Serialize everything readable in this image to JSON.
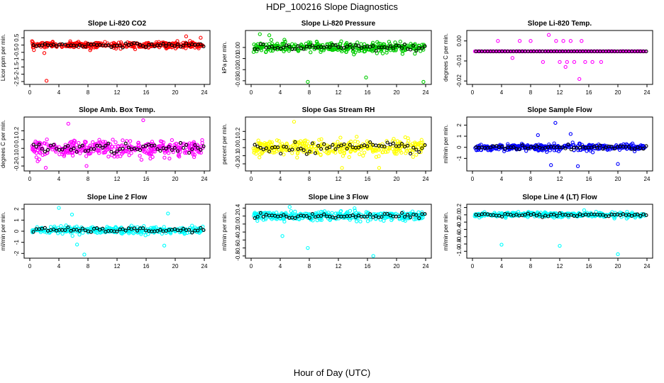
{
  "title": "HDP_100216  Slope Diagnostics",
  "xlabel": "Hour of Day (UTC)",
  "chart_data": [
    {
      "type": "scatter",
      "title": "Slope Li-820 CO2",
      "ylabel": "Licor ppm per min.",
      "color": "#ff0000",
      "xlim": [
        0,
        24
      ],
      "ylim": [
        -2.6,
        0.9
      ],
      "x_ticks": [
        0,
        4,
        8,
        12,
        16,
        20,
        24
      ],
      "y_ticks": [
        -2.5,
        -2,
        -1.5,
        -1,
        -0.5,
        0,
        0.5
      ],
      "y_tick_labels": [
        "-2.5",
        "-2",
        "-1.5",
        "-1",
        "-0.5",
        "0",
        "0.5"
      ],
      "spread": 0.18,
      "center": 0.0,
      "outliers": [
        [
          2.3,
          -2.45
        ],
        [
          2.0,
          -0.55
        ],
        [
          21.5,
          0.6
        ],
        [
          23.5,
          0.5
        ],
        [
          8.3,
          -0.35
        ]
      ]
    },
    {
      "type": "scatter",
      "title": "Slope Li-820 Pressure",
      "ylabel": "kPa per min.",
      "color": "#00cc00",
      "xlim": [
        0,
        24
      ],
      "ylim": [
        -0.032,
        0.014
      ],
      "x_ticks": [
        0,
        4,
        8,
        12,
        16,
        20,
        24
      ],
      "y_ticks": [
        -0.03,
        -0.02,
        -0.01,
        0.0
      ],
      "y_tick_labels": [
        "-0.03",
        "-0.02",
        "-0.01",
        "0.00"
      ],
      "spread": 0.004,
      "center": 0.0,
      "outliers": [
        [
          7.8,
          -0.031
        ],
        [
          15.8,
          -0.027
        ],
        [
          23.7,
          -0.031
        ],
        [
          1.2,
          0.012
        ],
        [
          2.5,
          0.011
        ]
      ]
    },
    {
      "type": "scatter",
      "title": "Slope Li-820 Temp.",
      "ylabel": "degrees C per min.",
      "color": "#ff00ff",
      "xlim": [
        0,
        24
      ],
      "ylim": [
        -0.021,
        0.0045
      ],
      "x_ticks": [
        0,
        4,
        8,
        12,
        16,
        20,
        24
      ],
      "y_ticks": [
        -0.02,
        -0.01,
        0.0
      ],
      "y_tick_labels": [
        "-0.02",
        "-0.01",
        "0.00"
      ],
      "spread": 0.0,
      "center": -0.0052,
      "outliers": [
        [
          11.5,
          0.0
        ],
        [
          12.5,
          0.0
        ],
        [
          13.5,
          0.0
        ],
        [
          15,
          0.0
        ],
        [
          3.5,
          0.0
        ],
        [
          6.5,
          0.0
        ],
        [
          8,
          0.0
        ],
        [
          10.5,
          0.003
        ],
        [
          12,
          -0.0105
        ],
        [
          13,
          -0.0105
        ],
        [
          14,
          -0.0105
        ],
        [
          15.5,
          -0.0105
        ],
        [
          16.5,
          -0.0105
        ],
        [
          12.8,
          -0.013
        ],
        [
          14.7,
          -0.019
        ],
        [
          9.7,
          -0.0105
        ],
        [
          5.5,
          -0.0085
        ],
        [
          17.7,
          -0.0105
        ]
      ]
    },
    {
      "type": "scatter",
      "title": "Slope Amb. Box Temp.",
      "ylabel": "degrees C per min.",
      "color": "#ff00ff",
      "xlim": [
        0,
        24
      ],
      "ylim": [
        -0.24,
        0.34
      ],
      "x_ticks": [
        0,
        4,
        8,
        12,
        16,
        20,
        24
      ],
      "y_ticks": [
        -0.2,
        -0.1,
        0.0,
        0.1,
        0.2
      ],
      "y_tick_labels": [
        "-0.2",
        "-0.1",
        "0.0",
        "0.1",
        "0.2"
      ],
      "spread": 0.08,
      "center": 0.0,
      "outliers": [
        [
          5.3,
          0.28
        ],
        [
          15.6,
          0.32
        ],
        [
          2.2,
          -0.22
        ],
        [
          7.8,
          -0.2
        ]
      ]
    },
    {
      "type": "scatter",
      "title": "Slope Gas Stream RH",
      "ylabel": "percent per min.",
      "color": "#ffff00",
      "xlim": [
        0,
        24
      ],
      "ylim": [
        -0.27,
        0.36
      ],
      "x_ticks": [
        0,
        4,
        8,
        12,
        16,
        20,
        24
      ],
      "y_ticks": [
        -0.2,
        -0.1,
        0.0,
        0.1,
        0.2
      ],
      "y_tick_labels": [
        "-0.2",
        "-0.1",
        "0.0",
        "0.1",
        "0.2"
      ],
      "spread": 0.09,
      "center": 0.0,
      "outliers": [
        [
          5.9,
          0.32
        ],
        [
          12.5,
          -0.25
        ],
        [
          17.6,
          -0.25
        ]
      ]
    },
    {
      "type": "scatter",
      "title": "Slope Sample Flow",
      "ylabel": "ml/min per min.",
      "color": "#0000ff",
      "xlim": [
        0,
        24
      ],
      "ylim": [
        -2.0,
        2.6
      ],
      "x_ticks": [
        0,
        4,
        8,
        12,
        16,
        20,
        24
      ],
      "y_ticks": [
        -1,
        0,
        1,
        2
      ],
      "y_tick_labels": [
        "-1",
        "0",
        "1",
        "2"
      ],
      "spread": 0.25,
      "center": 0.0,
      "outliers": [
        [
          11.4,
          2.2
        ],
        [
          10.8,
          -1.6
        ],
        [
          14.5,
          -1.7
        ],
        [
          20,
          -1.5
        ],
        [
          9,
          1.1
        ],
        [
          13.5,
          1.2
        ]
      ]
    },
    {
      "type": "scatter",
      "title": "Slope Line 2 Flow",
      "ylabel": "ml/min per min.",
      "color": "#00ffff",
      "xlim": [
        0,
        24
      ],
      "ylim": [
        -2.3,
        2.3
      ],
      "x_ticks": [
        0,
        4,
        8,
        12,
        16,
        20,
        24
      ],
      "y_ticks": [
        -2,
        -1,
        0,
        1,
        2
      ],
      "y_tick_labels": [
        "-2",
        "-1",
        "0",
        "1",
        "2"
      ],
      "spread": 0.28,
      "center": 0.1,
      "outliers": [
        [
          4,
          2.1
        ],
        [
          7.5,
          -2.1
        ],
        [
          6.5,
          -1.2
        ],
        [
          19,
          1.6
        ],
        [
          18.5,
          -1.3
        ],
        [
          5.8,
          1.5
        ]
      ]
    },
    {
      "type": "scatter",
      "title": "Slope Line 3 Flow",
      "ylabel": "ml/min per min.",
      "color": "#00ffff",
      "xlim": [
        0,
        24
      ],
      "ylim": [
        -0.82,
        0.46
      ],
      "x_ticks": [
        0,
        4,
        8,
        12,
        16,
        20,
        24
      ],
      "y_ticks": [
        -0.8,
        -0.6,
        -0.4,
        -0.2,
        0.0,
        0.2,
        0.4
      ],
      "y_tick_labels": [
        "-0.8",
        "-0.6",
        "-0.4",
        "-0.2",
        "0.0",
        "0.2",
        "0.4"
      ],
      "spread": 0.1,
      "center": 0.2,
      "outliers": [
        [
          16.8,
          -0.8
        ],
        [
          7.8,
          -0.6
        ],
        [
          5.3,
          0.43
        ],
        [
          4.3,
          -0.3
        ]
      ]
    },
    {
      "type": "scatter",
      "title": "Slope Line 4 (LT) Flow",
      "ylabel": "ml/min per min.",
      "color": "#00ffff",
      "xlim": [
        0,
        24
      ],
      "ylim": [
        -1.15,
        0.25
      ],
      "x_ticks": [
        0,
        4,
        8,
        12,
        16,
        20,
        24
      ],
      "y_ticks": [
        -1.0,
        -0.8,
        -0.6,
        -0.4,
        -0.2,
        0.0,
        0.2
      ],
      "y_tick_labels": [
        "-1.0",
        "-0.8",
        "-0.6",
        "-0.4",
        "-0.2",
        "0.0",
        "0.2"
      ],
      "spread": 0.06,
      "center": 0.0,
      "outliers": [
        [
          4,
          -0.82
        ],
        [
          12,
          -0.85
        ],
        [
          20,
          -1.08
        ]
      ]
    }
  ]
}
